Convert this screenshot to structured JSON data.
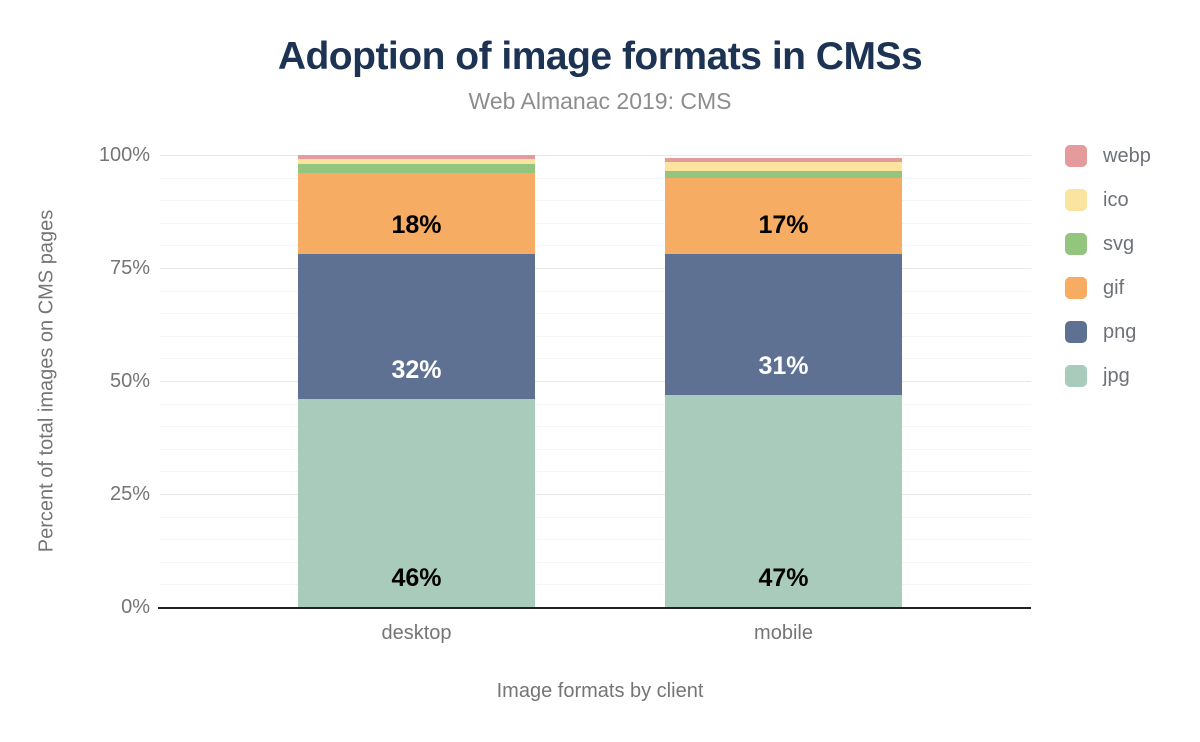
{
  "chart_data": {
    "type": "bar",
    "variant": "stacked-vertical",
    "title": "Adoption of image formats in CMSs",
    "subtitle": "Web Almanac 2019: CMS",
    "xlabel": "Image formats by client",
    "ylabel": "Percent of total images on CMS pages",
    "categories": [
      "desktop",
      "mobile"
    ],
    "y_axis": {
      "min": 0,
      "max": 100,
      "tick_labels": [
        "0%",
        "25%",
        "50%",
        "75%",
        "100%"
      ],
      "tick_values": [
        0,
        25,
        50,
        75,
        100
      ],
      "minor_grid_step": 5,
      "major_grid_step": 25,
      "unit": "%"
    },
    "stack_order_bottom_to_top": [
      "jpg",
      "png",
      "gif",
      "svg",
      "ico",
      "webp"
    ],
    "legend_position": "right",
    "legend_order_top_to_bottom": [
      "webp",
      "ico",
      "svg",
      "gif",
      "png",
      "jpg"
    ],
    "series": [
      {
        "name": "jpg",
        "color": "#a9cbbc",
        "values": [
          46,
          47
        ],
        "value_labels": [
          "46%",
          "47%"
        ],
        "label_color": "#000000"
      },
      {
        "name": "png",
        "color": "#5f7193",
        "values": [
          32,
          31
        ],
        "value_labels": [
          "32%",
          "31%"
        ],
        "label_color": "#ffffff"
      },
      {
        "name": "gif",
        "color": "#f6ac62",
        "values": [
          18,
          17
        ],
        "value_labels": [
          "18%",
          "17%"
        ],
        "label_color": "#000000"
      },
      {
        "name": "svg",
        "color": "#94c57f",
        "values": [
          2,
          1.5
        ],
        "value_labels": [
          "",
          ""
        ],
        "label_color": "#000000"
      },
      {
        "name": "ico",
        "color": "#fbe49d",
        "values": [
          1.2,
          1.9
        ],
        "value_labels": [
          "",
          ""
        ],
        "label_color": "#000000"
      },
      {
        "name": "webp",
        "color": "#e59a9b",
        "values": [
          0.8,
          1.0
        ],
        "value_labels": [
          "",
          ""
        ],
        "label_color": "#000000"
      }
    ]
  },
  "colors": {
    "background": "#ffffff",
    "title_text": "#1d3353",
    "subtitle_text": "#8d8d8d",
    "axis_text": "#757575",
    "legend_text": "#6e7179",
    "axis_line": "#212121",
    "grid_major": "#e8e8e8",
    "grid_minor": "#f5f5f5"
  }
}
